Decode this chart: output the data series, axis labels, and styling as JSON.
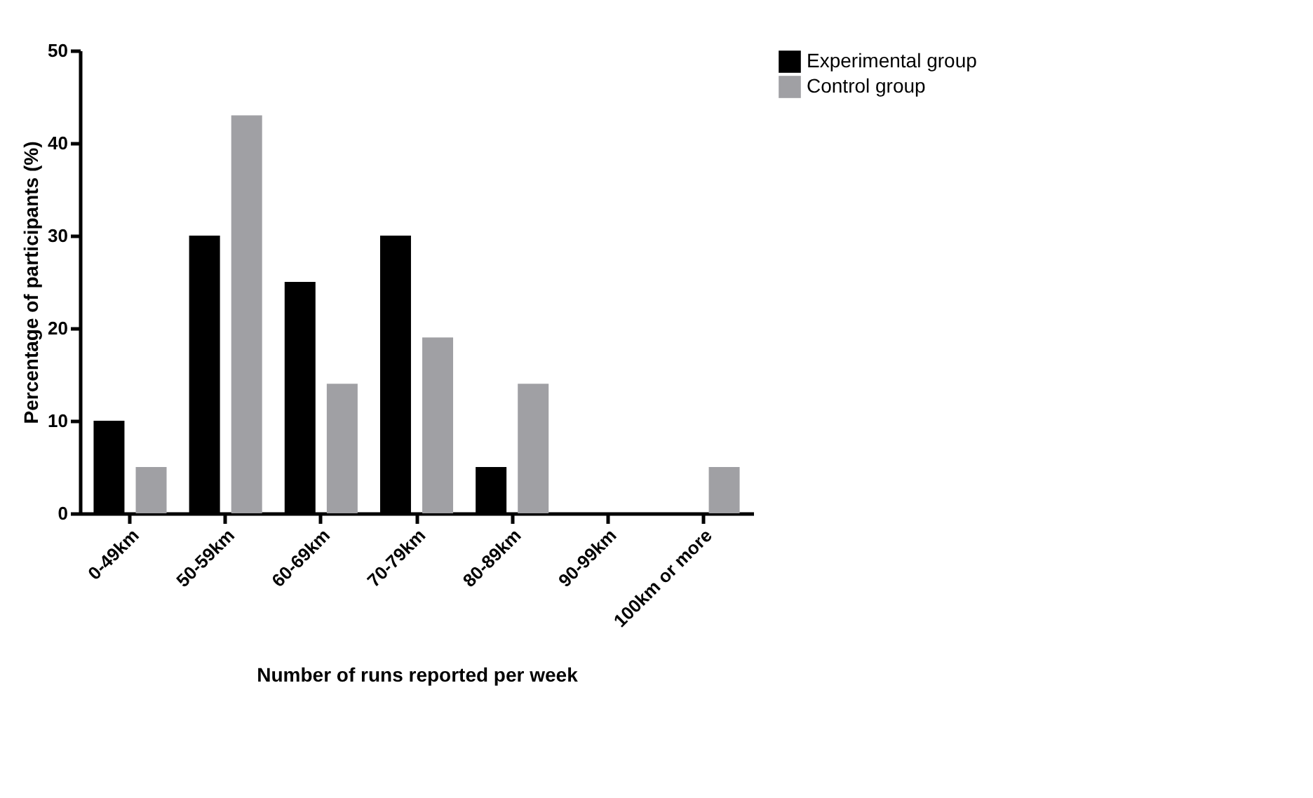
{
  "chart_data": {
    "type": "bar",
    "xlabel": "Number of runs reported per week",
    "ylabel": "Percentage of participants (%)",
    "categories": [
      "0-49km",
      "50-59km",
      "60-69km",
      "70-79km",
      "80-89km",
      "90-99km",
      "100km or more"
    ],
    "series": [
      {
        "name": "Experimental group",
        "color": "#000000",
        "values": [
          10,
          30,
          25,
          30,
          5,
          0,
          0
        ]
      },
      {
        "name": "Control group",
        "color": "#a0a0a4",
        "values": [
          5,
          43,
          14,
          19,
          14,
          0,
          5
        ]
      }
    ],
    "ylim": [
      0,
      50
    ],
    "yticks": [
      0,
      10,
      20,
      30,
      40,
      50
    ],
    "grid": false,
    "legend": "top right"
  }
}
